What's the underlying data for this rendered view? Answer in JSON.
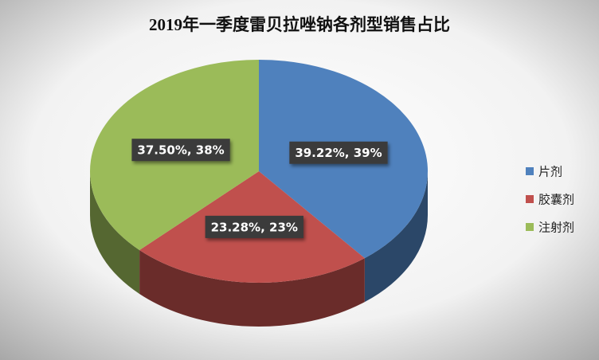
{
  "chart_data": {
    "type": "pie",
    "title": "2019年一季度雷贝拉唑钠各剂型销售占比",
    "categories": [
      "片剂",
      "胶囊剂",
      "注射剂"
    ],
    "values": [
      39.22,
      23.28,
      37.5
    ],
    "value_labels": [
      "39.22%, 39%",
      "23.28%, 23%",
      "37.50%, 38%"
    ],
    "colors": [
      "#4f81bd",
      "#c0504d",
      "#9bbb59"
    ],
    "legend": "right"
  }
}
